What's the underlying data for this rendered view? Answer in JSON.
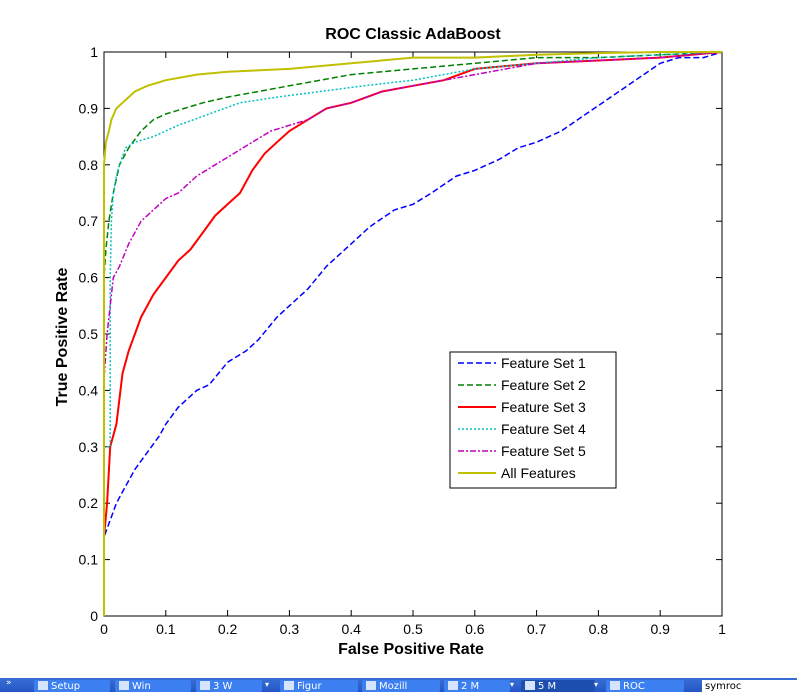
{
  "chart_data": {
    "type": "line",
    "title": "ROC Classic AdaBoost",
    "xlabel": "False Positive Rate",
    "ylabel": "True Positive Rate",
    "xlim": [
      0,
      1
    ],
    "ylim": [
      0,
      1
    ],
    "xticks": [
      "0",
      "0.1",
      "0.2",
      "0.3",
      "0.4",
      "0.5",
      "0.6",
      "0.7",
      "0.8",
      "0.9",
      "1"
    ],
    "yticks": [
      "0",
      "0.1",
      "0.2",
      "0.3",
      "0.4",
      "0.5",
      "0.6",
      "0.7",
      "0.8",
      "0.9",
      "1"
    ],
    "grid": false,
    "legend_position": "lower-right",
    "series": [
      {
        "name": "Feature Set 1",
        "color": "#0000ff",
        "dash": "6 3",
        "points": [
          [
            0,
            0
          ],
          [
            0,
            0.14
          ],
          [
            0.01,
            0.17
          ],
          [
            0.02,
            0.2
          ],
          [
            0.03,
            0.22
          ],
          [
            0.05,
            0.26
          ],
          [
            0.07,
            0.29
          ],
          [
            0.09,
            0.32
          ],
          [
            0.1,
            0.34
          ],
          [
            0.12,
            0.37
          ],
          [
            0.15,
            0.4
          ],
          [
            0.17,
            0.41
          ],
          [
            0.2,
            0.45
          ],
          [
            0.23,
            0.47
          ],
          [
            0.25,
            0.49
          ],
          [
            0.28,
            0.53
          ],
          [
            0.3,
            0.55
          ],
          [
            0.33,
            0.58
          ],
          [
            0.36,
            0.62
          ],
          [
            0.4,
            0.66
          ],
          [
            0.43,
            0.69
          ],
          [
            0.47,
            0.72
          ],
          [
            0.5,
            0.73
          ],
          [
            0.53,
            0.75
          ],
          [
            0.57,
            0.78
          ],
          [
            0.6,
            0.79
          ],
          [
            0.64,
            0.81
          ],
          [
            0.67,
            0.83
          ],
          [
            0.7,
            0.84
          ],
          [
            0.74,
            0.86
          ],
          [
            0.78,
            0.89
          ],
          [
            0.82,
            0.92
          ],
          [
            0.86,
            0.95
          ],
          [
            0.9,
            0.98
          ],
          [
            0.93,
            0.99
          ],
          [
            0.97,
            0.99
          ],
          [
            1,
            1
          ]
        ]
      },
      {
        "name": "Feature Set 2",
        "color": "#008000",
        "dash": "6 3",
        "points": [
          [
            0,
            0
          ],
          [
            0,
            0.6
          ],
          [
            0.003,
            0.65
          ],
          [
            0.008,
            0.7
          ],
          [
            0.015,
            0.75
          ],
          [
            0.025,
            0.8
          ],
          [
            0.04,
            0.83
          ],
          [
            0.06,
            0.86
          ],
          [
            0.08,
            0.88
          ],
          [
            0.1,
            0.89
          ],
          [
            0.13,
            0.9
          ],
          [
            0.16,
            0.91
          ],
          [
            0.2,
            0.92
          ],
          [
            0.25,
            0.93
          ],
          [
            0.3,
            0.94
          ],
          [
            0.35,
            0.95
          ],
          [
            0.4,
            0.96
          ],
          [
            0.5,
            0.97
          ],
          [
            0.6,
            0.98
          ],
          [
            0.7,
            0.99
          ],
          [
            0.8,
            0.99
          ],
          [
            0.9,
            0.995
          ],
          [
            1,
            1
          ]
        ]
      },
      {
        "name": "Feature Set 3",
        "color": "#ff0000",
        "dash": "",
        "points": [
          [
            0,
            0
          ],
          [
            0,
            0.14
          ],
          [
            0.005,
            0.2
          ],
          [
            0.01,
            0.3
          ],
          [
            0.02,
            0.34
          ],
          [
            0.03,
            0.43
          ],
          [
            0.04,
            0.47
          ],
          [
            0.06,
            0.53
          ],
          [
            0.08,
            0.57
          ],
          [
            0.1,
            0.6
          ],
          [
            0.12,
            0.63
          ],
          [
            0.14,
            0.65
          ],
          [
            0.16,
            0.68
          ],
          [
            0.18,
            0.71
          ],
          [
            0.2,
            0.73
          ],
          [
            0.22,
            0.75
          ],
          [
            0.24,
            0.79
          ],
          [
            0.26,
            0.82
          ],
          [
            0.28,
            0.84
          ],
          [
            0.3,
            0.86
          ],
          [
            0.33,
            0.88
          ],
          [
            0.36,
            0.9
          ],
          [
            0.4,
            0.91
          ],
          [
            0.45,
            0.93
          ],
          [
            0.5,
            0.94
          ],
          [
            0.55,
            0.95
          ],
          [
            0.6,
            0.97
          ],
          [
            0.7,
            0.98
          ],
          [
            0.8,
            0.985
          ],
          [
            0.9,
            0.99
          ],
          [
            1,
            1
          ]
        ]
      },
      {
        "name": "Feature Set 4",
        "color": "#00c0c0",
        "dash": "2 2",
        "points": [
          [
            0,
            0
          ],
          [
            0,
            0.3
          ],
          [
            0.01,
            0.3
          ],
          [
            0.01,
            0.6
          ],
          [
            0.012,
            0.7
          ],
          [
            0.015,
            0.75
          ],
          [
            0.02,
            0.78
          ],
          [
            0.025,
            0.8
          ],
          [
            0.035,
            0.83
          ],
          [
            0.05,
            0.84
          ],
          [
            0.08,
            0.85
          ],
          [
            0.12,
            0.87
          ],
          [
            0.17,
            0.89
          ],
          [
            0.22,
            0.91
          ],
          [
            0.28,
            0.92
          ],
          [
            0.35,
            0.93
          ],
          [
            0.42,
            0.94
          ],
          [
            0.5,
            0.95
          ],
          [
            0.6,
            0.97
          ],
          [
            0.7,
            0.98
          ],
          [
            0.8,
            0.99
          ],
          [
            0.9,
            0.995
          ],
          [
            1,
            1
          ]
        ]
      },
      {
        "name": "Feature Set 5",
        "color": "#c000c0",
        "dash": "6 2 2 2",
        "points": [
          [
            0,
            0
          ],
          [
            0,
            0.42
          ],
          [
            0.005,
            0.5
          ],
          [
            0.01,
            0.55
          ],
          [
            0.015,
            0.6
          ],
          [
            0.025,
            0.62
          ],
          [
            0.04,
            0.66
          ],
          [
            0.06,
            0.7
          ],
          [
            0.08,
            0.72
          ],
          [
            0.1,
            0.74
          ],
          [
            0.12,
            0.75
          ],
          [
            0.15,
            0.78
          ],
          [
            0.18,
            0.8
          ],
          [
            0.21,
            0.82
          ],
          [
            0.24,
            0.84
          ],
          [
            0.27,
            0.86
          ],
          [
            0.3,
            0.87
          ],
          [
            0.33,
            0.88
          ],
          [
            0.36,
            0.9
          ],
          [
            0.4,
            0.91
          ],
          [
            0.45,
            0.93
          ],
          [
            0.5,
            0.94
          ],
          [
            0.55,
            0.95
          ],
          [
            0.6,
            0.96
          ],
          [
            0.7,
            0.98
          ],
          [
            0.8,
            0.985
          ],
          [
            0.9,
            0.99
          ],
          [
            1,
            1
          ]
        ]
      },
      {
        "name": "All Features",
        "color": "#c0c000",
        "dash": "",
        "points": [
          [
            0,
            0
          ],
          [
            0,
            0.8
          ],
          [
            0.003,
            0.84
          ],
          [
            0.008,
            0.86
          ],
          [
            0.012,
            0.88
          ],
          [
            0.02,
            0.9
          ],
          [
            0.03,
            0.91
          ],
          [
            0.05,
            0.93
          ],
          [
            0.07,
            0.94
          ],
          [
            0.1,
            0.95
          ],
          [
            0.15,
            0.96
          ],
          [
            0.2,
            0.965
          ],
          [
            0.3,
            0.97
          ],
          [
            0.4,
            0.98
          ],
          [
            0.5,
            0.99
          ],
          [
            0.6,
            0.99
          ],
          [
            0.7,
            0.995
          ],
          [
            0.8,
            0.998
          ],
          [
            0.9,
            1
          ],
          [
            1,
            1
          ]
        ]
      }
    ]
  },
  "taskbar": {
    "items": [
      "Setup",
      "Win",
      "3 W",
      "Figur",
      "Mozill",
      "2 M",
      "5 M",
      "ROC"
    ],
    "tray_text": "symroc"
  }
}
